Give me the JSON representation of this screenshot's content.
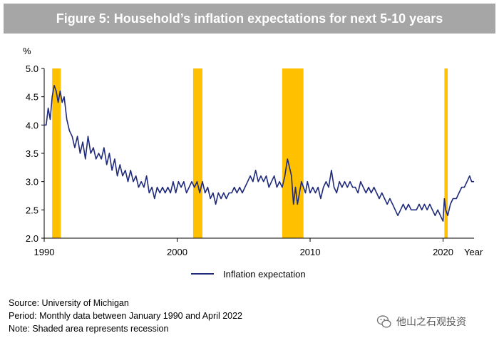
{
  "chart_data": {
    "type": "line",
    "title": "Figure 5: Household’s inflation expectations for next 5-10 years",
    "ylabel": "%",
    "xlabel": "Year",
    "ylim": [
      2.0,
      5.0
    ],
    "xlim": [
      1990.0,
      2022.33
    ],
    "y_ticks": [
      "2.0",
      "2.5",
      "3.0",
      "3.5",
      "4.0",
      "4.5",
      "5.0"
    ],
    "x_ticks": [
      "1990",
      "2000",
      "2010",
      "2020"
    ],
    "recessions": [
      [
        1990.6,
        1991.25
      ],
      [
        2001.2,
        2001.9
      ],
      [
        2007.9,
        2009.5
      ],
      [
        2020.1,
        2020.35
      ]
    ],
    "series": [
      {
        "name": "Inflation expectation",
        "color": "#1f2a7a",
        "points": [
          [
            1990.0,
            4.0
          ],
          [
            1990.15,
            4.0
          ],
          [
            1990.3,
            4.3
          ],
          [
            1990.45,
            4.1
          ],
          [
            1990.6,
            4.5
          ],
          [
            1990.75,
            4.7
          ],
          [
            1990.9,
            4.6
          ],
          [
            1991.05,
            4.4
          ],
          [
            1991.2,
            4.6
          ],
          [
            1991.35,
            4.4
          ],
          [
            1991.5,
            4.5
          ],
          [
            1991.7,
            4.1
          ],
          [
            1991.9,
            3.9
          ],
          [
            1992.1,
            3.8
          ],
          [
            1992.3,
            3.6
          ],
          [
            1992.5,
            3.8
          ],
          [
            1992.7,
            3.5
          ],
          [
            1992.9,
            3.7
          ],
          [
            1993.1,
            3.4
          ],
          [
            1993.3,
            3.8
          ],
          [
            1993.5,
            3.5
          ],
          [
            1993.7,
            3.6
          ],
          [
            1993.9,
            3.4
          ],
          [
            1994.1,
            3.5
          ],
          [
            1994.3,
            3.4
          ],
          [
            1994.5,
            3.6
          ],
          [
            1994.7,
            3.3
          ],
          [
            1994.9,
            3.5
          ],
          [
            1995.1,
            3.2
          ],
          [
            1995.3,
            3.4
          ],
          [
            1995.5,
            3.1
          ],
          [
            1995.7,
            3.3
          ],
          [
            1995.9,
            3.1
          ],
          [
            1996.1,
            3.2
          ],
          [
            1996.3,
            3.0
          ],
          [
            1996.5,
            3.2
          ],
          [
            1996.7,
            3.0
          ],
          [
            1996.9,
            3.1
          ],
          [
            1997.1,
            2.9
          ],
          [
            1997.3,
            3.0
          ],
          [
            1997.5,
            2.9
          ],
          [
            1997.7,
            3.1
          ],
          [
            1997.9,
            2.8
          ],
          [
            1998.1,
            2.9
          ],
          [
            1998.3,
            2.7
          ],
          [
            1998.5,
            2.9
          ],
          [
            1998.7,
            2.8
          ],
          [
            1998.9,
            2.9
          ],
          [
            1999.1,
            2.8
          ],
          [
            1999.3,
            2.9
          ],
          [
            1999.5,
            2.8
          ],
          [
            1999.7,
            3.0
          ],
          [
            1999.9,
            2.8
          ],
          [
            2000.1,
            3.0
          ],
          [
            2000.3,
            2.9
          ],
          [
            2000.5,
            3.0
          ],
          [
            2000.7,
            2.8
          ],
          [
            2000.9,
            2.9
          ],
          [
            2001.1,
            3.0
          ],
          [
            2001.3,
            2.9
          ],
          [
            2001.5,
            3.0
          ],
          [
            2001.7,
            2.8
          ],
          [
            2001.9,
            3.0
          ],
          [
            2002.1,
            2.8
          ],
          [
            2002.3,
            2.9
          ],
          [
            2002.5,
            2.7
          ],
          [
            2002.7,
            2.8
          ],
          [
            2002.9,
            2.6
          ],
          [
            2003.1,
            2.8
          ],
          [
            2003.3,
            2.7
          ],
          [
            2003.5,
            2.8
          ],
          [
            2003.7,
            2.7
          ],
          [
            2003.9,
            2.8
          ],
          [
            2004.1,
            2.8
          ],
          [
            2004.3,
            2.9
          ],
          [
            2004.5,
            2.8
          ],
          [
            2004.7,
            2.9
          ],
          [
            2004.9,
            2.8
          ],
          [
            2005.1,
            2.9
          ],
          [
            2005.3,
            3.0
          ],
          [
            2005.5,
            3.1
          ],
          [
            2005.7,
            3.0
          ],
          [
            2005.9,
            3.2
          ],
          [
            2006.1,
            3.0
          ],
          [
            2006.3,
            3.1
          ],
          [
            2006.5,
            3.0
          ],
          [
            2006.7,
            3.1
          ],
          [
            2006.9,
            2.9
          ],
          [
            2007.1,
            3.0
          ],
          [
            2007.3,
            3.1
          ],
          [
            2007.5,
            2.9
          ],
          [
            2007.7,
            3.0
          ],
          [
            2007.9,
            2.9
          ],
          [
            2008.1,
            3.1
          ],
          [
            2008.3,
            3.4
          ],
          [
            2008.5,
            3.2
          ],
          [
            2008.6,
            3.1
          ],
          [
            2008.75,
            2.6
          ],
          [
            2008.9,
            2.9
          ],
          [
            2009.05,
            2.6
          ],
          [
            2009.2,
            2.8
          ],
          [
            2009.35,
            3.0
          ],
          [
            2009.5,
            2.9
          ],
          [
            2009.65,
            2.8
          ],
          [
            2009.8,
            3.0
          ],
          [
            2010.0,
            2.8
          ],
          [
            2010.2,
            2.9
          ],
          [
            2010.4,
            2.8
          ],
          [
            2010.6,
            2.9
          ],
          [
            2010.8,
            2.7
          ],
          [
            2011.0,
            2.9
          ],
          [
            2011.2,
            3.0
          ],
          [
            2011.4,
            2.9
          ],
          [
            2011.6,
            3.2
          ],
          [
            2011.8,
            2.9
          ],
          [
            2012.0,
            2.8
          ],
          [
            2012.2,
            3.0
          ],
          [
            2012.4,
            2.9
          ],
          [
            2012.6,
            3.0
          ],
          [
            2012.8,
            2.9
          ],
          [
            2013.0,
            3.0
          ],
          [
            2013.2,
            2.9
          ],
          [
            2013.4,
            2.9
          ],
          [
            2013.6,
            2.8
          ],
          [
            2013.8,
            3.0
          ],
          [
            2014.0,
            2.9
          ],
          [
            2014.2,
            2.8
          ],
          [
            2014.4,
            2.9
          ],
          [
            2014.6,
            2.8
          ],
          [
            2014.8,
            2.9
          ],
          [
            2015.0,
            2.8
          ],
          [
            2015.2,
            2.7
          ],
          [
            2015.4,
            2.8
          ],
          [
            2015.6,
            2.7
          ],
          [
            2015.8,
            2.6
          ],
          [
            2016.0,
            2.7
          ],
          [
            2016.2,
            2.6
          ],
          [
            2016.4,
            2.5
          ],
          [
            2016.6,
            2.4
          ],
          [
            2016.8,
            2.5
          ],
          [
            2017.0,
            2.6
          ],
          [
            2017.2,
            2.5
          ],
          [
            2017.4,
            2.6
          ],
          [
            2017.6,
            2.5
          ],
          [
            2017.8,
            2.5
          ],
          [
            2018.0,
            2.5
          ],
          [
            2018.2,
            2.6
          ],
          [
            2018.4,
            2.5
          ],
          [
            2018.6,
            2.6
          ],
          [
            2018.8,
            2.5
          ],
          [
            2019.0,
            2.6
          ],
          [
            2019.2,
            2.5
          ],
          [
            2019.4,
            2.4
          ],
          [
            2019.6,
            2.5
          ],
          [
            2019.8,
            2.4
          ],
          [
            2020.0,
            2.3
          ],
          [
            2020.1,
            2.7
          ],
          [
            2020.2,
            2.5
          ],
          [
            2020.35,
            2.4
          ],
          [
            2020.55,
            2.6
          ],
          [
            2020.75,
            2.7
          ],
          [
            2021.0,
            2.7
          ],
          [
            2021.2,
            2.8
          ],
          [
            2021.4,
            2.9
          ],
          [
            2021.6,
            2.9
          ],
          [
            2021.8,
            3.0
          ],
          [
            2022.0,
            3.1
          ],
          [
            2022.15,
            3.0
          ],
          [
            2022.33,
            3.0
          ]
        ]
      }
    ]
  },
  "legend": {
    "label": "Inflation expectation"
  },
  "notes": {
    "source": "Source: University of Michigan",
    "period": "Period: Monthly data between January 1990 and April 2022",
    "note": "Note: Shaded area represents recession"
  },
  "watermark": {
    "text": "他山之石观投资"
  },
  "colors": {
    "title_bg": "#a6a6a6",
    "recession": "#ffc000",
    "line": "#1f2a7a"
  }
}
